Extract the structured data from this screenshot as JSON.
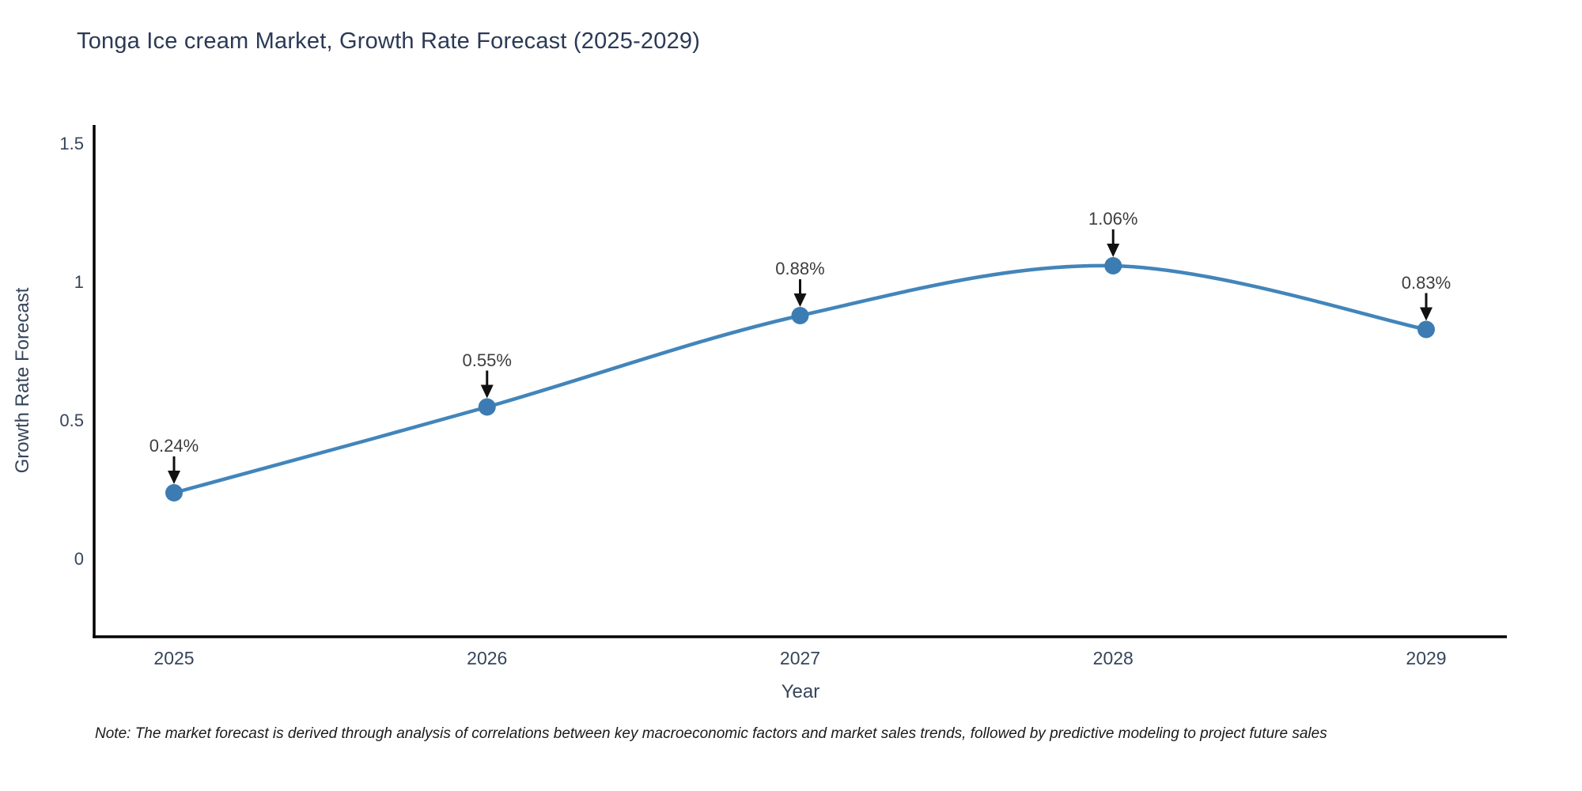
{
  "note": "Note: The market forecast is derived through analysis of correlations between key macroeconomic factors and market sales trends, followed by predictive modeling to project future sales",
  "colors": {
    "background": "#ffffff",
    "line": "#4285ba",
    "marker": "#3c7cb3",
    "axis": "#000000",
    "arrow": "#111111",
    "title_text": "#2b3a55",
    "tick_text": "#36455a",
    "annotation_text": "#3d3d3d",
    "note_text": "#1a1a1a"
  },
  "chart_data": {
    "type": "line",
    "title": "Tonga Ice cream Market, Growth Rate Forecast (2025-2029)",
    "xlabel": "Year",
    "ylabel": "Growth Rate Forecast",
    "categories": [
      "2025",
      "2026",
      "2027",
      "2028",
      "2029"
    ],
    "values": [
      0.24,
      0.55,
      0.88,
      1.06,
      0.83
    ],
    "unit": "%",
    "point_labels": [
      "0.24%",
      "0.55%",
      "0.88%",
      "1.06%",
      "0.83%"
    ],
    "yticks": [
      {
        "value": 1.5,
        "label": "1.5"
      },
      {
        "value": 1.0,
        "label": "1"
      },
      {
        "value": 0.5,
        "label": "0.5"
      },
      {
        "value": 0.0,
        "label": "0"
      }
    ],
    "ylim": [
      -0.28,
      1.57
    ],
    "line_shape": "spline",
    "grid": false,
    "legend": false,
    "annotations_have_arrows": true
  }
}
